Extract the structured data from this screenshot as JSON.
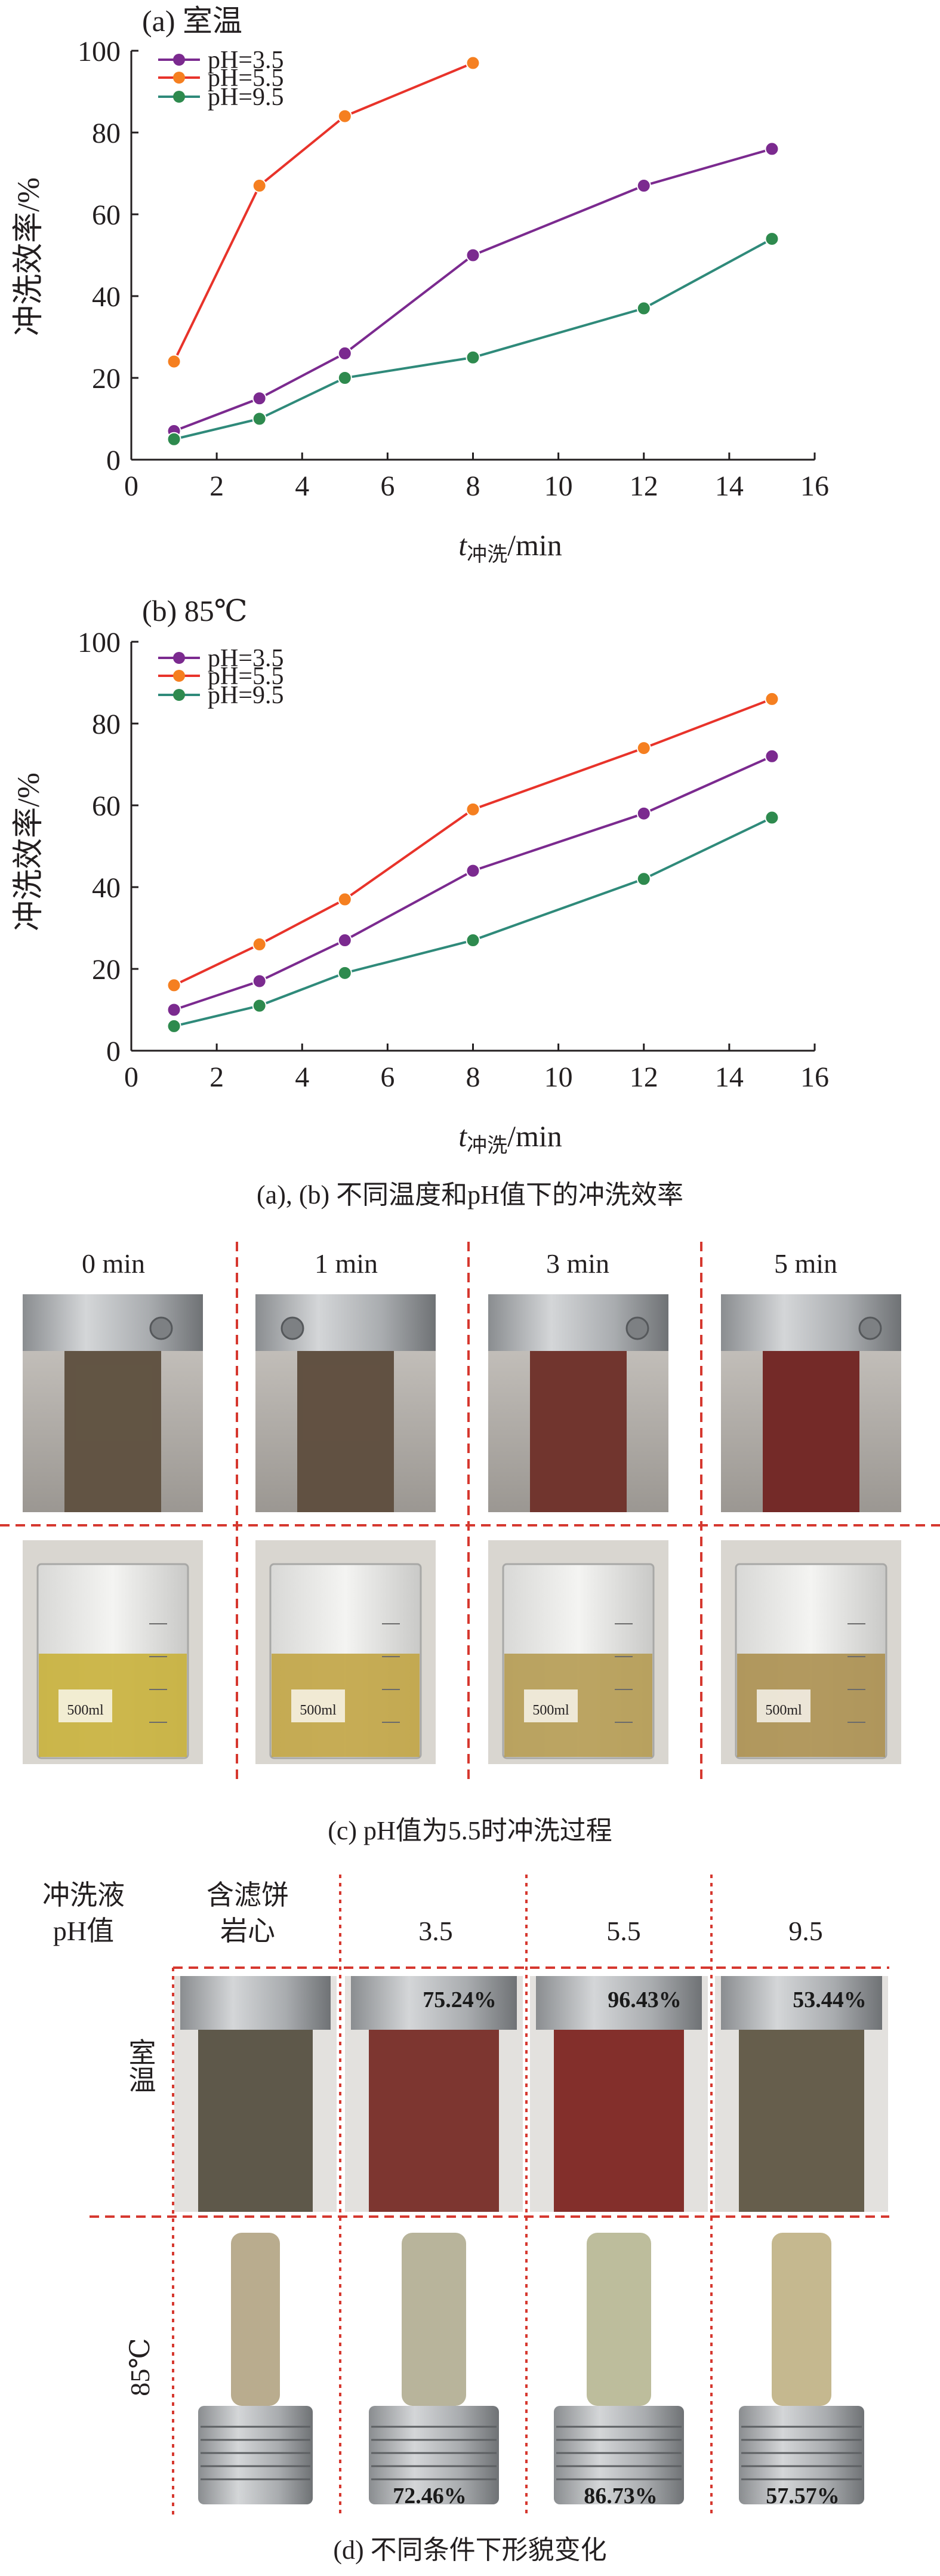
{
  "chart_data": [
    {
      "type": "line",
      "panel_label": "(a) 室温",
      "xlabel_main": "t",
      "xlabel_sub": "冲洗",
      "xlabel_unit": "/min",
      "ylabel": "冲洗效率/%",
      "xlim": [
        0,
        16
      ],
      "ylim": [
        0,
        100
      ],
      "xticks": [
        "0",
        "2",
        "4",
        "6",
        "8",
        "10",
        "12",
        "14",
        "16"
      ],
      "yticks": [
        "0",
        "20",
        "40",
        "60",
        "80",
        "100"
      ],
      "legend_placement": "top-left",
      "legend": [
        "pH=3.5",
        "pH=5.5",
        "pH=9.5"
      ],
      "series": [
        {
          "name": "pH=3.5",
          "x": [
            1,
            3,
            5,
            8,
            12,
            15
          ],
          "y": [
            7,
            15,
            26,
            50,
            67,
            76
          ]
        },
        {
          "name": "pH=5.5",
          "x": [
            1,
            3,
            5,
            8
          ],
          "y": [
            24,
            67,
            84,
            97
          ]
        },
        {
          "name": "pH=9.5",
          "x": [
            1,
            3,
            5,
            8,
            12,
            15
          ],
          "y": [
            5,
            10,
            20,
            25,
            37,
            54
          ]
        }
      ]
    },
    {
      "type": "line",
      "panel_label": "(b) 85℃",
      "xlabel_main": "t",
      "xlabel_sub": "冲洗",
      "xlabel_unit": "/min",
      "ylabel": "冲洗效率/%",
      "xlim": [
        0,
        16
      ],
      "ylim": [
        0,
        100
      ],
      "xticks": [
        "0",
        "2",
        "4",
        "6",
        "8",
        "10",
        "12",
        "14",
        "16"
      ],
      "yticks": [
        "0",
        "20",
        "40",
        "60",
        "80",
        "100"
      ],
      "legend_placement": "top-left",
      "legend": [
        "pH=3.5",
        "pH=5.5",
        "pH=9.5"
      ],
      "series": [
        {
          "name": "pH=3.5",
          "x": [
            1,
            3,
            5,
            8,
            12,
            15
          ],
          "y": [
            10,
            17,
            27,
            44,
            58,
            72
          ]
        },
        {
          "name": "pH=5.5",
          "x": [
            1,
            3,
            5,
            8,
            12,
            15
          ],
          "y": [
            16,
            26,
            37,
            59,
            74,
            86
          ]
        },
        {
          "name": "pH=9.5",
          "x": [
            1,
            3,
            5,
            8,
            12,
            15
          ],
          "y": [
            6,
            11,
            19,
            27,
            42,
            57
          ]
        }
      ]
    }
  ],
  "series_colors": {
    "pH=3.5": "#7b2a8f",
    "pH=5.5": "#f57f20",
    "pH=9.5": "#2e8a4e"
  },
  "line_colors": {
    "pH=3.5": "#7b2a8f",
    "pH=5.5": "#e8332a",
    "pH=9.5": "#2f8a7a"
  },
  "caption_ab": "(a), (b) 不同温度和pH值下的冲洗效率",
  "panel_c": {
    "time_labels": [
      "0 min",
      "1 min",
      "3 min",
      "5 min"
    ],
    "caption": "(c) pH值为5.5时冲洗过程",
    "beaker_text": "500ml",
    "core_colors": [
      "#6b5c4a",
      "#6a5848",
      "#7b3a32",
      "#7e2e2c"
    ],
    "liquid_colors": [
      "#c9b23e",
      "#c2a648",
      "#b69d56",
      "#ad9152"
    ]
  },
  "panel_d": {
    "header_left_1": "冲洗液",
    "header_left_2": "pH值",
    "header_core_1": "含滤饼",
    "header_core_2": "岩心",
    "ph_headers": [
      "3.5",
      "5.5",
      "9.5"
    ],
    "row1_label": "室温",
    "row2_label": "85℃",
    "room_pct": [
      "75.24%",
      "96.43%",
      "53.44%"
    ],
    "hot_pct": [
      "72.46%",
      "86.73%",
      "57.57%"
    ],
    "caption": "(d) 不同条件下形貌变化"
  }
}
